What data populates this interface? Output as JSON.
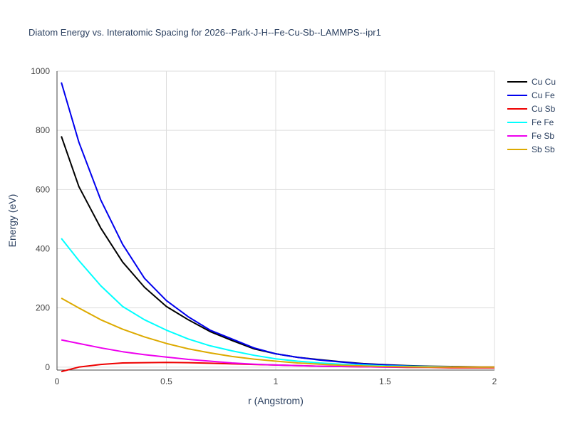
{
  "chart_data": {
    "type": "line",
    "title": "Diatom Energy vs. Interatomic Spacing for 2026--Park-J-H--Fe-Cu-Sb--LAMMPS--ipr1",
    "xlabel": "r (Angstrom)",
    "ylabel": "Energy (eV)",
    "xlim": [
      0,
      2
    ],
    "ylim": [
      -10,
      1000
    ],
    "x_ticks": [
      0,
      0.5,
      1,
      1.5,
      2
    ],
    "x_tick_labels": [
      "0",
      "0.5",
      "1",
      "1.5",
      "2"
    ],
    "y_ticks": [
      0,
      200,
      400,
      600,
      800,
      1000
    ],
    "y_tick_labels": [
      "0",
      "200",
      "400",
      "600",
      "800",
      "1000"
    ],
    "grid": true,
    "legend_position": "top-right",
    "series": [
      {
        "name": "Cu Cu",
        "color": "#000000",
        "x": [
          0.02,
          0.1,
          0.2,
          0.3,
          0.4,
          0.5,
          0.6,
          0.7,
          0.8,
          0.9,
          1.0,
          1.1,
          1.2,
          1.3,
          1.4,
          1.5,
          1.6,
          1.7,
          1.8,
          1.9,
          2.0
        ],
        "y": [
          780,
          610,
          470,
          355,
          270,
          205,
          160,
          120,
          90,
          62,
          45,
          33,
          25,
          18,
          12,
          8,
          5,
          3,
          2,
          1,
          0
        ]
      },
      {
        "name": "Cu Fe",
        "color": "#0000ee",
        "x": [
          0.02,
          0.1,
          0.2,
          0.3,
          0.4,
          0.5,
          0.6,
          0.7,
          0.8,
          0.9,
          1.0,
          1.1,
          1.2,
          1.3,
          1.4,
          1.5,
          1.6,
          1.7,
          1.8,
          1.9,
          2.0
        ],
        "y": [
          962,
          760,
          565,
          415,
          300,
          225,
          170,
          125,
          95,
          65,
          45,
          33,
          24,
          17,
          11,
          7,
          4,
          2,
          1,
          0,
          0
        ]
      },
      {
        "name": "Cu Sb",
        "color": "#ee0000",
        "x": [
          0.02,
          0.1,
          0.2,
          0.3,
          0.4,
          0.5,
          0.6,
          0.7,
          0.8,
          0.9,
          1.0,
          1.1,
          1.2,
          1.3,
          1.4,
          1.5,
          1.6,
          1.7,
          1.8,
          1.9,
          2.0
        ],
        "y": [
          -15,
          0,
          9,
          14,
          15,
          16,
          15,
          13,
          11,
          9,
          7,
          5,
          3,
          2,
          1,
          0,
          -1,
          -1,
          -2,
          -2,
          -2
        ]
      },
      {
        "name": "Fe Fe",
        "color": "#00ffff",
        "x": [
          0.02,
          0.1,
          0.2,
          0.3,
          0.4,
          0.5,
          0.6,
          0.7,
          0.8,
          0.9,
          1.0,
          1.1,
          1.2,
          1.3,
          1.4,
          1.5,
          1.6,
          1.7,
          1.8,
          1.9,
          2.0
        ],
        "y": [
          435,
          360,
          275,
          205,
          160,
          125,
          95,
          72,
          55,
          40,
          28,
          20,
          14,
          10,
          7,
          4,
          3,
          2,
          1,
          0,
          0
        ]
      },
      {
        "name": "Fe Sb",
        "color": "#ee00ee",
        "x": [
          0.02,
          0.1,
          0.2,
          0.3,
          0.4,
          0.5,
          0.6,
          0.7,
          0.8,
          0.9,
          1.0,
          1.1,
          1.2,
          1.3,
          1.4,
          1.5,
          1.6,
          1.7,
          1.8,
          1.9,
          2.0
        ],
        "y": [
          92,
          80,
          65,
          52,
          42,
          34,
          26,
          20,
          14,
          10,
          7,
          5,
          3,
          2,
          1,
          0,
          0,
          0,
          0,
          0,
          0
        ]
      },
      {
        "name": "Sb Sb",
        "color": "#ddaa00",
        "x": [
          0.02,
          0.1,
          0.2,
          0.3,
          0.4,
          0.5,
          0.6,
          0.7,
          0.8,
          0.9,
          1.0,
          1.1,
          1.2,
          1.3,
          1.4,
          1.5,
          1.6,
          1.7,
          1.8,
          1.9,
          2.0
        ],
        "y": [
          233,
          200,
          160,
          128,
          102,
          80,
          62,
          48,
          36,
          27,
          20,
          14,
          10,
          6,
          4,
          2,
          1,
          0,
          0,
          0,
          0
        ]
      }
    ]
  }
}
